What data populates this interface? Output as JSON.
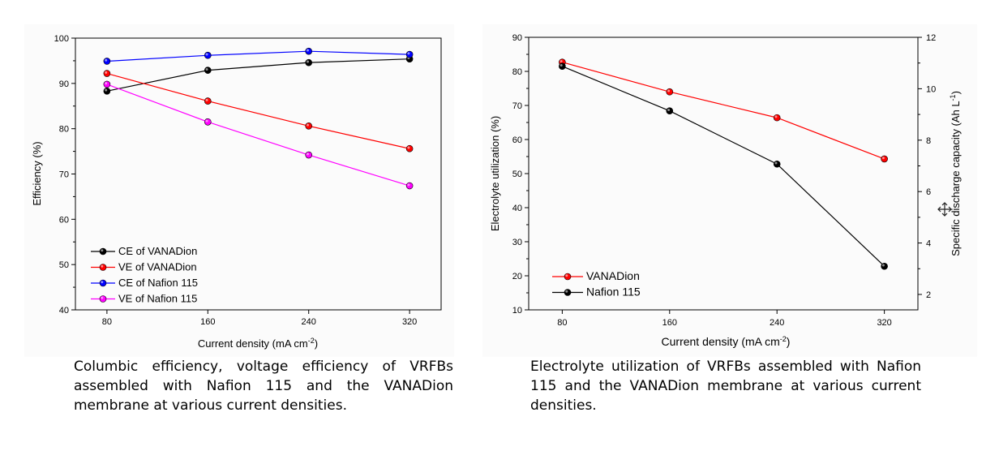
{
  "chart_data": [
    {
      "type": "line",
      "xlabel": "Current density (mA cm",
      "xlabel_sup": "-2",
      "xlabel_end": ")",
      "ylabel": "Efficiency (%)",
      "x": [
        80,
        160,
        240,
        320
      ],
      "x_ticks": [
        "80",
        "160",
        "240",
        "320"
      ],
      "xlim": [
        55,
        345
      ],
      "ylim": [
        40,
        100
      ],
      "y_ticks": [
        "40",
        "50",
        "60",
        "70",
        "80",
        "90",
        "100"
      ],
      "grid": false,
      "legend_position": "bottom-left",
      "series": [
        {
          "name": "CE of  VANADion",
          "color": "#000000",
          "values": [
            88.3,
            92.9,
            94.6,
            95.4
          ]
        },
        {
          "name": "VE of  VANADion",
          "color": "#ff0000",
          "values": [
            92.2,
            86.1,
            80.6,
            75.6
          ]
        },
        {
          "name": "CE of  Nafion 115",
          "color": "#0000ff",
          "values": [
            94.9,
            96.2,
            97.1,
            96.4
          ]
        },
        {
          "name": "VE of  Nafion 115",
          "color": "#ff00ff",
          "values": [
            89.8,
            81.5,
            74.2,
            67.4
          ]
        }
      ],
      "caption": "Columbic efficiency, voltage efficiency of VRFBs assembled with Nafion 115 and the VANADion membrane at various current densities."
    },
    {
      "type": "line",
      "xlabel": "Current density (mA cm",
      "xlabel_sup": "-2",
      "xlabel_end": ")",
      "ylabel": "Electrolyte utilization (%)",
      "y2label": "Specific discharge capacity (Ah L",
      "y2label_sup": "-1",
      "y2label_end": ")",
      "x": [
        80,
        160,
        240,
        320
      ],
      "x_ticks": [
        "80",
        "160",
        "240",
        "320"
      ],
      "xlim": [
        55,
        345
      ],
      "ylim": [
        10,
        90
      ],
      "y_ticks": [
        "10",
        "20",
        "30",
        "40",
        "50",
        "60",
        "70",
        "80",
        "90"
      ],
      "y2lim": [
        1.4,
        12
      ],
      "y2_ticks": [
        "2",
        "4",
        "6",
        "8",
        "10",
        "12"
      ],
      "grid": false,
      "legend_position": "bottom-left",
      "series": [
        {
          "name": "VANADion",
          "color": "#ff0000",
          "values": [
            82.7,
            74.0,
            66.4,
            54.3
          ]
        },
        {
          "name": "Nafion 115",
          "color": "#000000",
          "values": [
            81.5,
            68.4,
            52.8,
            22.8
          ]
        }
      ],
      "caption": "Electrolyte utilization of VRFBs assembled with Nafion 115 and the VANADion membrane at various current densities."
    }
  ]
}
